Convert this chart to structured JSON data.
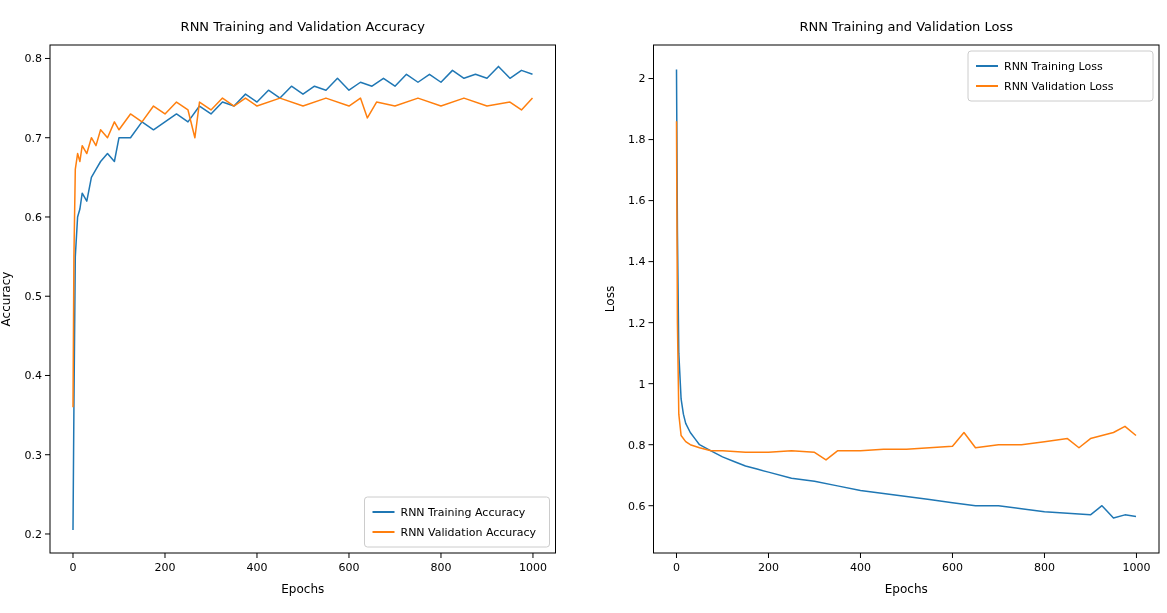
{
  "chart_data": [
    {
      "type": "line",
      "title": "RNN Training and Validation Accuracy",
      "xlabel": "Epochs",
      "ylabel": "Accuracy",
      "xlim": [
        -50,
        1049
      ],
      "ylim": [
        0.176,
        0.817
      ],
      "xticks": [
        0,
        200,
        400,
        600,
        800,
        1000
      ],
      "yticks": [
        0.2,
        0.3,
        0.4,
        0.5,
        0.6,
        0.7,
        0.8
      ],
      "legend": "bottom right",
      "grid": false,
      "series": [
        {
          "name": "RNN Training Accuracy",
          "color": "#1f77b4",
          "x": [
            0,
            2,
            5,
            10,
            15,
            20,
            30,
            40,
            50,
            60,
            75,
            90,
            100,
            125,
            150,
            175,
            200,
            225,
            250,
            275,
            300,
            325,
            350,
            375,
            400,
            425,
            450,
            475,
            500,
            525,
            550,
            575,
            600,
            625,
            650,
            675,
            700,
            725,
            750,
            775,
            800,
            825,
            850,
            875,
            900,
            925,
            950,
            975,
            999
          ],
          "values": [
            0.205,
            0.36,
            0.55,
            0.6,
            0.61,
            0.63,
            0.62,
            0.65,
            0.66,
            0.67,
            0.68,
            0.67,
            0.7,
            0.7,
            0.72,
            0.71,
            0.72,
            0.73,
            0.72,
            0.74,
            0.73,
            0.745,
            0.74,
            0.755,
            0.745,
            0.76,
            0.75,
            0.765,
            0.755,
            0.765,
            0.76,
            0.775,
            0.76,
            0.77,
            0.765,
            0.775,
            0.765,
            0.78,
            0.77,
            0.78,
            0.77,
            0.785,
            0.775,
            0.78,
            0.775,
            0.79,
            0.775,
            0.785,
            0.78
          ]
        },
        {
          "name": "RNN Validation Accuracy",
          "color": "#ff7f0e",
          "x": [
            0,
            2,
            5,
            10,
            15,
            20,
            30,
            40,
            50,
            60,
            75,
            90,
            100,
            125,
            150,
            175,
            200,
            225,
            250,
            265,
            275,
            300,
            325,
            350,
            375,
            400,
            450,
            500,
            550,
            600,
            625,
            640,
            660,
            700,
            750,
            800,
            850,
            900,
            950,
            975,
            999
          ],
          "values": [
            0.36,
            0.55,
            0.66,
            0.68,
            0.67,
            0.69,
            0.68,
            0.7,
            0.69,
            0.71,
            0.7,
            0.72,
            0.71,
            0.73,
            0.72,
            0.74,
            0.73,
            0.745,
            0.735,
            0.7,
            0.745,
            0.735,
            0.75,
            0.74,
            0.75,
            0.74,
            0.75,
            0.74,
            0.75,
            0.74,
            0.75,
            0.725,
            0.745,
            0.74,
            0.75,
            0.74,
            0.75,
            0.74,
            0.745,
            0.735,
            0.75
          ]
        }
      ]
    },
    {
      "type": "line",
      "title": "RNN Training and Validation Loss",
      "xlabel": "Epochs",
      "ylabel": "Loss",
      "xlim": [
        -50,
        1049
      ],
      "ylim": [
        0.445,
        2.11
      ],
      "xticks": [
        0,
        200,
        400,
        600,
        800,
        1000
      ],
      "yticks": [
        0.6,
        0.8,
        1.0,
        1.2,
        1.4,
        1.6,
        1.8,
        2.0
      ],
      "legend": "top right",
      "grid": false,
      "series": [
        {
          "name": "RNN Training Loss",
          "color": "#1f77b4",
          "x": [
            0,
            2,
            5,
            10,
            15,
            20,
            30,
            40,
            50,
            75,
            100,
            125,
            150,
            175,
            200,
            250,
            300,
            350,
            400,
            450,
            500,
            550,
            600,
            650,
            700,
            750,
            800,
            850,
            900,
            925,
            950,
            975,
            999
          ],
          "values": [
            2.03,
            1.5,
            1.1,
            0.95,
            0.9,
            0.87,
            0.84,
            0.82,
            0.8,
            0.78,
            0.76,
            0.745,
            0.73,
            0.72,
            0.71,
            0.69,
            0.68,
            0.665,
            0.65,
            0.64,
            0.63,
            0.62,
            0.61,
            0.6,
            0.6,
            0.59,
            0.58,
            0.575,
            0.57,
            0.6,
            0.56,
            0.57,
            0.565
          ]
        },
        {
          "name": "RNN Validation Loss",
          "color": "#ff7f0e",
          "x": [
            0,
            2,
            5,
            10,
            20,
            30,
            50,
            75,
            100,
            150,
            200,
            250,
            300,
            325,
            350,
            400,
            450,
            500,
            550,
            600,
            625,
            650,
            700,
            750,
            800,
            850,
            875,
            900,
            925,
            950,
            975,
            999
          ],
          "values": [
            1.86,
            1.2,
            0.9,
            0.83,
            0.81,
            0.8,
            0.79,
            0.78,
            0.78,
            0.775,
            0.775,
            0.78,
            0.775,
            0.75,
            0.78,
            0.78,
            0.785,
            0.785,
            0.79,
            0.795,
            0.84,
            0.79,
            0.8,
            0.8,
            0.81,
            0.82,
            0.79,
            0.82,
            0.83,
            0.84,
            0.86,
            0.83
          ]
        }
      ]
    }
  ]
}
